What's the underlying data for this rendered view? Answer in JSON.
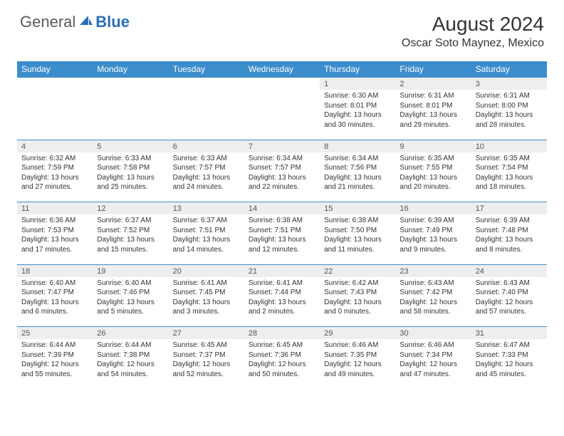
{
  "logo": {
    "general": "General",
    "blue": "Blue"
  },
  "title": "August 2024",
  "location": "Oscar Soto Maynez, Mexico",
  "colors": {
    "header_bar": "#3c8dcc",
    "day_num_bg": "#eeeeee",
    "border": "#3c8dcc",
    "logo_blue": "#2a6fb5",
    "text": "#333333"
  },
  "weekdays": [
    "Sunday",
    "Monday",
    "Tuesday",
    "Wednesday",
    "Thursday",
    "Friday",
    "Saturday"
  ],
  "weeks": [
    {
      "nums": [
        "",
        "",
        "",
        "",
        "1",
        "2",
        "3"
      ],
      "cells": [
        null,
        null,
        null,
        null,
        {
          "sunrise": "Sunrise: 6:30 AM",
          "sunset": "Sunset: 8:01 PM",
          "daylight": "Daylight: 13 hours and 30 minutes."
        },
        {
          "sunrise": "Sunrise: 6:31 AM",
          "sunset": "Sunset: 8:01 PM",
          "daylight": "Daylight: 13 hours and 29 minutes."
        },
        {
          "sunrise": "Sunrise: 6:31 AM",
          "sunset": "Sunset: 8:00 PM",
          "daylight": "Daylight: 13 hours and 28 minutes."
        }
      ]
    },
    {
      "nums": [
        "4",
        "5",
        "6",
        "7",
        "8",
        "9",
        "10"
      ],
      "cells": [
        {
          "sunrise": "Sunrise: 6:32 AM",
          "sunset": "Sunset: 7:59 PM",
          "daylight": "Daylight: 13 hours and 27 minutes."
        },
        {
          "sunrise": "Sunrise: 6:33 AM",
          "sunset": "Sunset: 7:58 PM",
          "daylight": "Daylight: 13 hours and 25 minutes."
        },
        {
          "sunrise": "Sunrise: 6:33 AM",
          "sunset": "Sunset: 7:57 PM",
          "daylight": "Daylight: 13 hours and 24 minutes."
        },
        {
          "sunrise": "Sunrise: 6:34 AM",
          "sunset": "Sunset: 7:57 PM",
          "daylight": "Daylight: 13 hours and 22 minutes."
        },
        {
          "sunrise": "Sunrise: 6:34 AM",
          "sunset": "Sunset: 7:56 PM",
          "daylight": "Daylight: 13 hours and 21 minutes."
        },
        {
          "sunrise": "Sunrise: 6:35 AM",
          "sunset": "Sunset: 7:55 PM",
          "daylight": "Daylight: 13 hours and 20 minutes."
        },
        {
          "sunrise": "Sunrise: 6:35 AM",
          "sunset": "Sunset: 7:54 PM",
          "daylight": "Daylight: 13 hours and 18 minutes."
        }
      ]
    },
    {
      "nums": [
        "11",
        "12",
        "13",
        "14",
        "15",
        "16",
        "17"
      ],
      "cells": [
        {
          "sunrise": "Sunrise: 6:36 AM",
          "sunset": "Sunset: 7:53 PM",
          "daylight": "Daylight: 13 hours and 17 minutes."
        },
        {
          "sunrise": "Sunrise: 6:37 AM",
          "sunset": "Sunset: 7:52 PM",
          "daylight": "Daylight: 13 hours and 15 minutes."
        },
        {
          "sunrise": "Sunrise: 6:37 AM",
          "sunset": "Sunset: 7:51 PM",
          "daylight": "Daylight: 13 hours and 14 minutes."
        },
        {
          "sunrise": "Sunrise: 6:38 AM",
          "sunset": "Sunset: 7:51 PM",
          "daylight": "Daylight: 13 hours and 12 minutes."
        },
        {
          "sunrise": "Sunrise: 6:38 AM",
          "sunset": "Sunset: 7:50 PM",
          "daylight": "Daylight: 13 hours and 11 minutes."
        },
        {
          "sunrise": "Sunrise: 6:39 AM",
          "sunset": "Sunset: 7:49 PM",
          "daylight": "Daylight: 13 hours and 9 minutes."
        },
        {
          "sunrise": "Sunrise: 6:39 AM",
          "sunset": "Sunset: 7:48 PM",
          "daylight": "Daylight: 13 hours and 8 minutes."
        }
      ]
    },
    {
      "nums": [
        "18",
        "19",
        "20",
        "21",
        "22",
        "23",
        "24"
      ],
      "cells": [
        {
          "sunrise": "Sunrise: 6:40 AM",
          "sunset": "Sunset: 7:47 PM",
          "daylight": "Daylight: 13 hours and 6 minutes."
        },
        {
          "sunrise": "Sunrise: 6:40 AM",
          "sunset": "Sunset: 7:46 PM",
          "daylight": "Daylight: 13 hours and 5 minutes."
        },
        {
          "sunrise": "Sunrise: 6:41 AM",
          "sunset": "Sunset: 7:45 PM",
          "daylight": "Daylight: 13 hours and 3 minutes."
        },
        {
          "sunrise": "Sunrise: 6:41 AM",
          "sunset": "Sunset: 7:44 PM",
          "daylight": "Daylight: 13 hours and 2 minutes."
        },
        {
          "sunrise": "Sunrise: 6:42 AM",
          "sunset": "Sunset: 7:43 PM",
          "daylight": "Daylight: 13 hours and 0 minutes."
        },
        {
          "sunrise": "Sunrise: 6:43 AM",
          "sunset": "Sunset: 7:42 PM",
          "daylight": "Daylight: 12 hours and 58 minutes."
        },
        {
          "sunrise": "Sunrise: 6:43 AM",
          "sunset": "Sunset: 7:40 PM",
          "daylight": "Daylight: 12 hours and 57 minutes."
        }
      ]
    },
    {
      "nums": [
        "25",
        "26",
        "27",
        "28",
        "29",
        "30",
        "31"
      ],
      "cells": [
        {
          "sunrise": "Sunrise: 6:44 AM",
          "sunset": "Sunset: 7:39 PM",
          "daylight": "Daylight: 12 hours and 55 minutes."
        },
        {
          "sunrise": "Sunrise: 6:44 AM",
          "sunset": "Sunset: 7:38 PM",
          "daylight": "Daylight: 12 hours and 54 minutes."
        },
        {
          "sunrise": "Sunrise: 6:45 AM",
          "sunset": "Sunset: 7:37 PM",
          "daylight": "Daylight: 12 hours and 52 minutes."
        },
        {
          "sunrise": "Sunrise: 6:45 AM",
          "sunset": "Sunset: 7:36 PM",
          "daylight": "Daylight: 12 hours and 50 minutes."
        },
        {
          "sunrise": "Sunrise: 6:46 AM",
          "sunset": "Sunset: 7:35 PM",
          "daylight": "Daylight: 12 hours and 49 minutes."
        },
        {
          "sunrise": "Sunrise: 6:46 AM",
          "sunset": "Sunset: 7:34 PM",
          "daylight": "Daylight: 12 hours and 47 minutes."
        },
        {
          "sunrise": "Sunrise: 6:47 AM",
          "sunset": "Sunset: 7:33 PM",
          "daylight": "Daylight: 12 hours and 45 minutes."
        }
      ]
    }
  ]
}
